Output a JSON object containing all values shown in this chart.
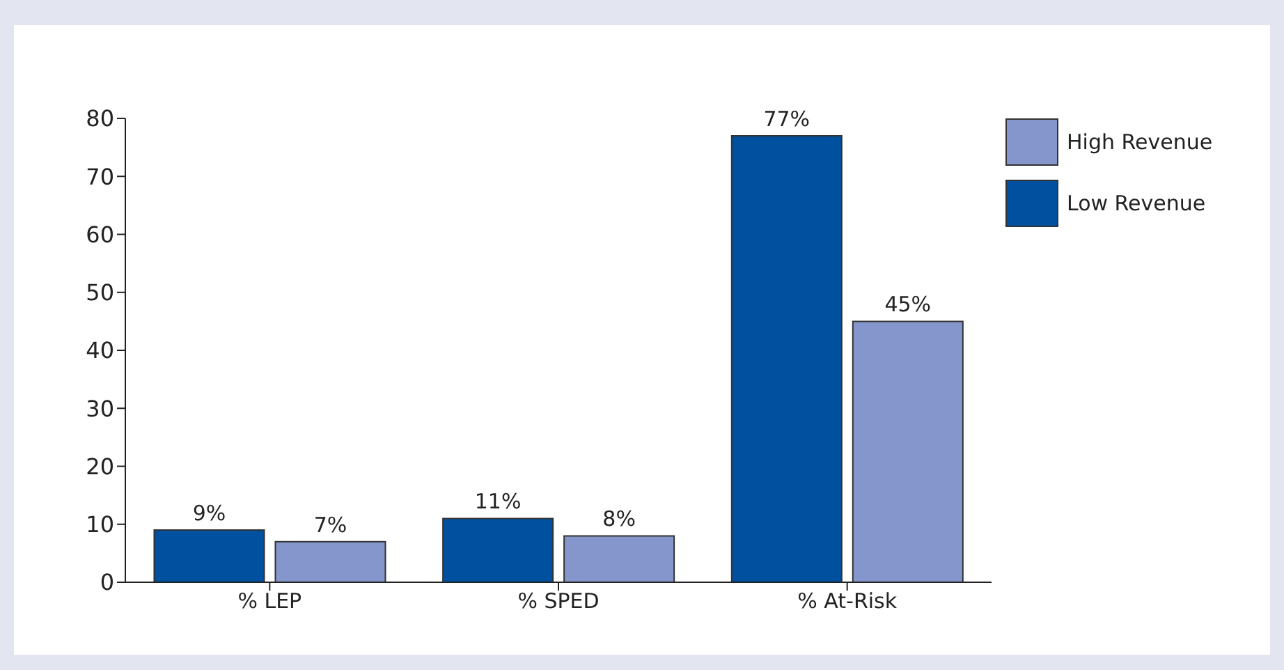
{
  "chart_data": {
    "type": "bar",
    "categories": [
      "% LEP",
      "% SPED",
      "% At-Risk"
    ],
    "series": [
      {
        "name": "Low Revenue",
        "color": "#0050a0",
        "values": [
          9,
          11,
          77
        ],
        "value_labels": [
          "9%",
          "11%",
          "77%"
        ]
      },
      {
        "name": "High Revenue",
        "color": "#8496cc",
        "values": [
          7,
          8,
          45
        ],
        "value_labels": [
          "7%",
          "8%",
          "45%"
        ]
      }
    ],
    "ylim": [
      0,
      80
    ],
    "yticks": [
      0,
      10,
      20,
      30,
      40,
      50,
      60,
      70,
      80
    ],
    "grid": false,
    "legend": "top right"
  }
}
